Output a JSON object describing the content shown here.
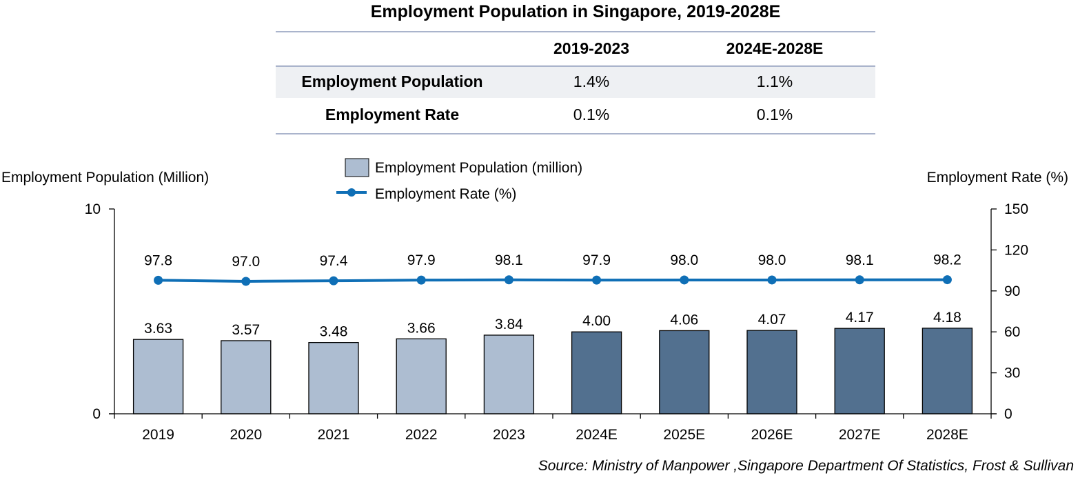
{
  "title": "Employment Population in Singapore, 2019-2028E",
  "cagr_table": {
    "headers": [
      "",
      "2019-2023",
      "2024E-2028E"
    ],
    "rows": [
      {
        "label": "Employment Population",
        "values": [
          "1.4%",
          "1.1%"
        ]
      },
      {
        "label": "Employment Rate",
        "values": [
          "0.1%",
          "0.1%"
        ]
      }
    ]
  },
  "chart_data": {
    "type": "bar",
    "categories": [
      "2019",
      "2020",
      "2021",
      "2022",
      "2023",
      "2024E",
      "2025E",
      "2026E",
      "2027E",
      "2028E"
    ],
    "series": [
      {
        "name": "Employment Population (million)",
        "type": "bar",
        "axis": "left",
        "values": [
          3.63,
          3.57,
          3.48,
          3.66,
          3.84,
          4.0,
          4.06,
          4.07,
          4.17,
          4.18
        ],
        "labels": [
          "3.63",
          "3.57",
          "3.48",
          "3.66",
          "3.84",
          "4.00",
          "4.06",
          "4.07",
          "4.17",
          "4.18"
        ]
      },
      {
        "name": "Employment Rate (%)",
        "type": "line",
        "axis": "right",
        "values": [
          97.8,
          97.0,
          97.4,
          97.9,
          98.1,
          97.9,
          98.0,
          98.0,
          98.1,
          98.2
        ],
        "labels": [
          "97.8",
          "97.0",
          "97.4",
          "97.9",
          "98.1",
          "97.9",
          "98.0",
          "98.0",
          "98.1",
          "98.2"
        ]
      }
    ],
    "ylabel": "Employment Population (Million)",
    "y2label": "Employment Rate (%)",
    "ylim": [
      0,
      10
    ],
    "y_ticks": [
      "0",
      "10"
    ],
    "y2lim": [
      0,
      150
    ],
    "y2_ticks": [
      "0",
      "30",
      "60",
      "90",
      "120",
      "150"
    ],
    "grid": false,
    "legend_position": "top-center",
    "colors": {
      "historical_bar": "#adbdd1",
      "forecast_bar": "#52708f",
      "line": "#0f6fb6"
    },
    "historical_count": 5
  },
  "source": "Source: Ministry of Manpower ,Singapore Department Of Statistics, Frost & Sullivan"
}
